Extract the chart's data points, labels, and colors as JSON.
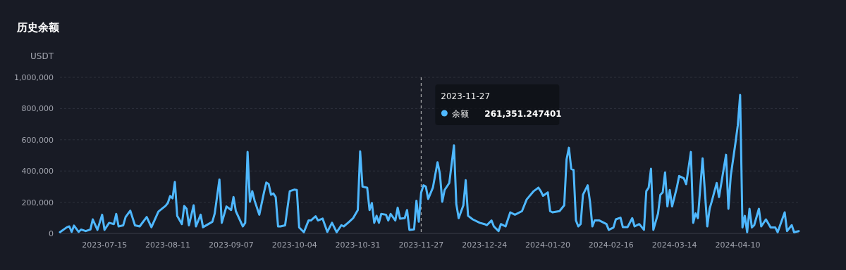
{
  "chart_data": {
    "type": "line",
    "title": "历史余额",
    "ylabel": "USDT",
    "x": [
      "2023-06-26",
      "2023-06-29",
      "2023-06-30",
      "2023-07-01",
      "2023-07-02",
      "2023-07-04",
      "2023-07-05",
      "2023-07-07",
      "2023-07-09",
      "2023-07-10",
      "2023-07-12",
      "2023-07-14",
      "2023-07-15",
      "2023-07-17",
      "2023-07-19",
      "2023-07-20",
      "2023-07-21",
      "2023-07-23",
      "2023-07-24",
      "2023-07-26",
      "2023-07-28",
      "2023-07-30",
      "2023-08-02",
      "2023-08-04",
      "2023-08-07",
      "2023-08-10",
      "2023-08-11",
      "2023-08-12",
      "2023-08-13",
      "2023-08-14",
      "2023-08-15",
      "2023-08-17",
      "2023-08-18",
      "2023-08-19",
      "2023-08-20",
      "2023-08-22",
      "2023-08-23",
      "2023-08-25",
      "2023-08-26",
      "2023-08-30",
      "2023-08-31",
      "2023-09-02",
      "2023-09-03",
      "2023-09-05",
      "2023-09-07",
      "2023-09-08",
      "2023-09-09",
      "2023-09-12",
      "2023-09-13",
      "2023-09-14",
      "2023-09-15",
      "2023-09-16",
      "2023-09-17",
      "2023-09-19",
      "2023-09-21",
      "2023-09-22",
      "2023-09-23",
      "2023-09-24",
      "2023-09-25",
      "2023-09-26",
      "2023-09-27",
      "2023-09-28",
      "2023-09-30",
      "2023-10-02",
      "2023-10-04",
      "2023-10-05",
      "2023-10-06",
      "2023-10-08",
      "2023-10-10",
      "2023-10-11",
      "2023-10-13",
      "2023-10-14",
      "2023-10-16",
      "2023-10-18",
      "2023-10-20",
      "2023-10-22",
      "2023-10-24",
      "2023-10-25",
      "2023-10-27",
      "2023-10-29",
      "2023-10-31",
      "2023-11-01",
      "2023-11-02",
      "2023-11-04",
      "2023-11-05",
      "2023-11-06",
      "2023-11-07",
      "2023-11-08",
      "2023-11-09",
      "2023-11-10",
      "2023-11-12",
      "2023-11-13",
      "2023-11-14",
      "2023-11-16",
      "2023-11-17",
      "2023-11-18",
      "2023-11-20",
      "2023-11-21",
      "2023-11-22",
      "2023-11-24",
      "2023-11-25",
      "2023-11-26",
      "2023-11-27",
      "2023-11-28",
      "2023-11-29",
      "2023-11-30",
      "2023-12-02",
      "2023-12-04",
      "2023-12-05",
      "2023-12-06",
      "2023-12-07",
      "2023-12-09",
      "2023-12-11",
      "2023-12-12",
      "2023-12-13",
      "2023-12-15",
      "2023-12-16",
      "2023-12-17",
      "2023-12-19",
      "2023-12-22",
      "2023-12-24",
      "2023-12-25",
      "2023-12-27",
      "2023-12-28",
      "2023-12-30",
      "2023-12-31",
      "2024-01-02",
      "2024-01-04",
      "2024-01-06",
      "2024-01-09",
      "2024-01-11",
      "2024-01-14",
      "2024-01-16",
      "2024-01-17",
      "2024-01-18",
      "2024-01-20",
      "2024-01-21",
      "2024-01-22",
      "2024-01-25",
      "2024-01-27",
      "2024-01-28",
      "2024-01-29",
      "2024-01-30",
      "2024-01-31",
      "2024-02-01",
      "2024-02-02",
      "2024-02-03",
      "2024-02-04",
      "2024-02-06",
      "2024-02-07",
      "2024-02-08",
      "2024-02-09",
      "2024-02-11",
      "2024-02-14",
      "2024-02-15",
      "2024-02-17",
      "2024-02-18",
      "2024-02-20",
      "2024-02-21",
      "2024-02-23",
      "2024-02-25",
      "2024-02-26",
      "2024-02-28",
      "2024-03-01",
      "2024-03-02",
      "2024-03-03",
      "2024-03-04",
      "2024-03-05",
      "2024-03-07",
      "2024-03-08",
      "2024-03-09",
      "2024-03-10",
      "2024-03-11",
      "2024-03-12",
      "2024-03-13",
      "2024-03-15",
      "2024-03-16",
      "2024-03-18",
      "2024-03-19",
      "2024-03-21",
      "2024-03-22",
      "2024-03-23",
      "2024-03-24",
      "2024-03-26",
      "2024-03-28",
      "2024-03-29",
      "2024-03-30",
      "2024-04-01",
      "2024-04-02",
      "2024-04-05",
      "2024-04-06",
      "2024-04-07",
      "2024-04-09",
      "2024-04-10",
      "2024-04-11",
      "2024-04-12",
      "2024-04-13",
      "2024-04-14",
      "2024-04-15",
      "2024-04-16",
      "2024-04-17",
      "2024-04-19",
      "2024-04-20",
      "2024-04-22",
      "2024-04-24",
      "2024-04-26",
      "2024-04-27",
      "2024-04-30",
      "2024-05-01",
      "2024-05-03",
      "2024-05-04",
      "2024-05-06"
    ],
    "series": [
      {
        "name": "余额",
        "color": "#4fb8ff",
        "values": [
          8000,
          40000,
          45000,
          10000,
          50000,
          10000,
          25000,
          15000,
          25000,
          90000,
          23000,
          120000,
          23000,
          68000,
          60000,
          125000,
          45000,
          52000,
          105000,
          146000,
          52000,
          45000,
          105000,
          40000,
          140000,
          176000,
          195000,
          240000,
          225000,
          330000,
          113000,
          60000,
          176000,
          158000,
          52000,
          180000,
          45000,
          120000,
          40000,
          75000,
          128000,
          346000,
          68000,
          173000,
          150000,
          233000,
          143000,
          45000,
          68000,
          522000,
          203000,
          271000,
          210000,
          120000,
          263000,
          326000,
          316000,
          248000,
          256000,
          233000,
          45000,
          45000,
          52000,
          271000,
          281000,
          278000,
          38000,
          8000,
          83000,
          83000,
          110000,
          83000,
          95000,
          10000,
          68000,
          8000,
          53000,
          45000,
          70000,
          98000,
          150000,
          526000,
          300000,
          293000,
          150000,
          195000,
          68000,
          113000,
          68000,
          125000,
          120000,
          83000,
          125000,
          83000,
          165000,
          95000,
          98000,
          150000,
          23000,
          26000,
          210000,
          75000,
          261351.247401,
          308000,
          300000,
          221000,
          293000,
          456000,
          383000,
          203000,
          278000,
          323000,
          564000,
          188000,
          98000,
          180000,
          341000,
          113000,
          90000,
          68000,
          60000,
          53000,
          83000,
          45000,
          15000,
          60000,
          45000,
          135000,
          120000,
          143000,
          218000,
          271000,
          293000,
          271000,
          241000,
          263000,
          143000,
          135000,
          143000,
          180000,
          474000,
          549000,
          414000,
          406000,
          83000,
          45000,
          60000,
          248000,
          308000,
          203000,
          45000,
          83000,
          83000,
          60000,
          23000,
          38000,
          90000,
          101000,
          40000,
          40000,
          98000,
          45000,
          60000,
          23000,
          271000,
          293000,
          414000,
          23000,
          128000,
          248000,
          263000,
          391000,
          173000,
          278000,
          173000,
          293000,
          368000,
          353000,
          316000,
          522000,
          68000,
          128000,
          98000,
          481000,
          45000,
          158000,
          210000,
          323000,
          233000,
          504000,
          158000,
          368000,
          579000,
          692000,
          887000,
          38000,
          113000,
          8000,
          158000,
          38000,
          53000,
          158000,
          45000,
          90000,
          38000,
          38000,
          8000,
          135000,
          15000,
          53000,
          8000,
          15000
        ]
      }
    ],
    "xlim": [
      "2023-06-26",
      "2024-05-06"
    ],
    "xticks": [
      "2023-07-15",
      "2023-08-11",
      "2023-09-07",
      "2023-10-04",
      "2023-10-31",
      "2023-11-27",
      "2023-12-24",
      "2024-01-20",
      "2024-02-16",
      "2024-03-14",
      "2024-04-10"
    ],
    "ylim": [
      0,
      1000000
    ],
    "yticks": [
      {
        "value": 0,
        "label": "0"
      },
      {
        "value": 200000,
        "label": "200,000"
      },
      {
        "value": 400000,
        "label": "400,000"
      },
      {
        "value": 600000,
        "label": "600,000"
      },
      {
        "value": 800000,
        "label": "800,000"
      },
      {
        "value": 1000000,
        "label": "1,000,000"
      }
    ],
    "grid": "y",
    "marker": "none",
    "line_style": "solid",
    "ref_lines": [
      {
        "axis": "x",
        "value": "2023-11-27",
        "color": "#cccccc",
        "line_style": "dashed"
      }
    ],
    "annotations": [
      "2023-11-27",
      "261,351.247401"
    ]
  }
}
